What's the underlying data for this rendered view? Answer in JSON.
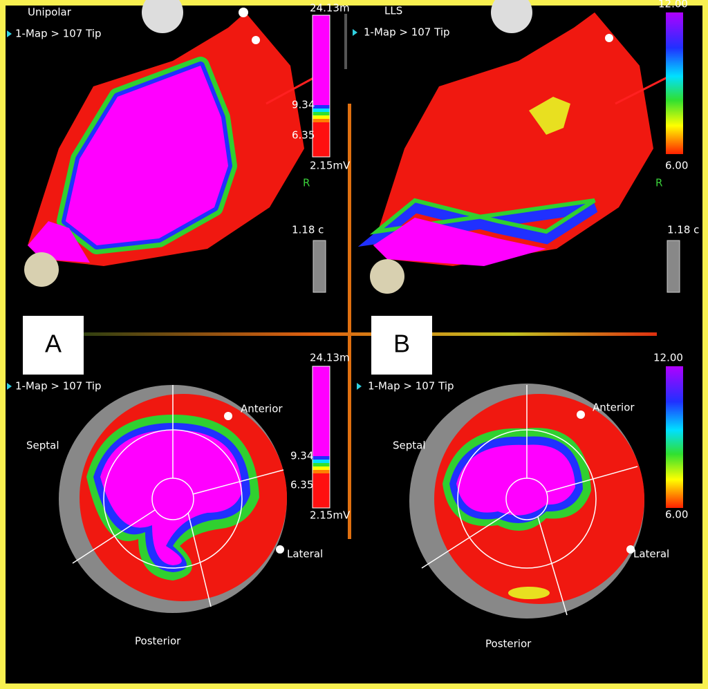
{
  "figure_labels": [
    "A",
    "B"
  ],
  "panels": [
    {
      "title": "Unipolar",
      "map_label": "1-Map > 107 Tip",
      "scale_labels": [
        "24.13m",
        "9.34",
        "6.35",
        "2.15mV"
      ],
      "ruler_label": "1.18 c",
      "orientation_label": "R"
    },
    {
      "title": "LLS",
      "map_label": "1-Map > 107 Tip",
      "scale_labels": [
        "12.00",
        "6.00"
      ],
      "ruler_label": "1.18 c",
      "orientation_label": "R"
    },
    {
      "map_label": "1-Map > 107 Tip",
      "scale_labels": [
        "24.13m",
        "9.34",
        "6.35",
        "2.15mV"
      ],
      "segments": [
        "Septal",
        "Anterior",
        "Lateral",
        "Posterior"
      ]
    },
    {
      "map_label": "1-Map > 107 Tip",
      "scale_labels": [
        "12.00",
        "6.00"
      ],
      "segments": [
        "Septal",
        "Anterior",
        "Lateral",
        "Posterior"
      ]
    }
  ]
}
